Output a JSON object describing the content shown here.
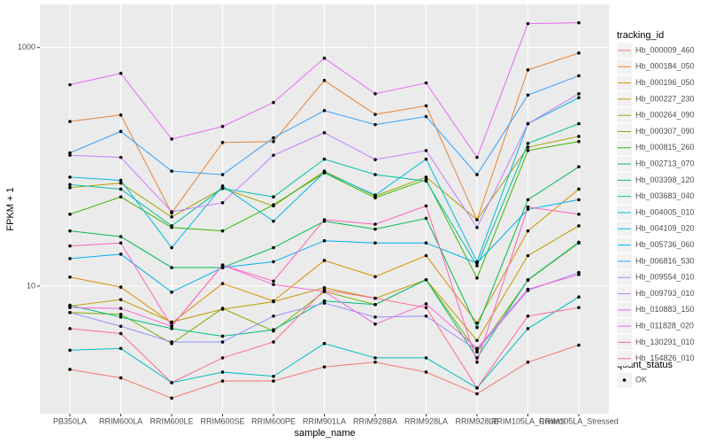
{
  "chart_data": {
    "type": "line",
    "x_label": "sample_name",
    "y_label": "FPKM + 1",
    "categories": [
      "PB350LA",
      "RRIM600LA",
      "RRIM600LE",
      "RRIM600SE",
      "RRIM600PE",
      "RRIM901LA",
      "RRIM928BA",
      "RRIM928LA",
      "RRIM928LE",
      "RRIM105LA_Control",
      "RRIM105LA_Stressed"
    ],
    "log_y": true,
    "ylim": [
      0.85,
      2300
    ],
    "yticks": [
      10,
      1000
    ],
    "grid": true,
    "legend_title": "tracking_id",
    "legend_position": "right",
    "point_legend_title": "quant_status",
    "point_legend_labels": [
      "OK"
    ],
    "point_color": "#000000",
    "series": [
      {
        "name": "Hb_000009_460",
        "color": "#F8766D",
        "values": [
          2.0,
          1.7,
          1.15,
          1.6,
          1.6,
          2.1,
          2.3,
          1.9,
          1.25,
          2.3,
          3.2
        ]
      },
      {
        "name": "Hb_000184_050",
        "color": "#EA8331",
        "values": [
          240,
          272,
          41,
          160,
          163,
          530,
          275,
          325,
          36,
          650,
          900
        ]
      },
      {
        "name": "Hb_000196_050",
        "color": "#D89000",
        "values": [
          11.9,
          9.8,
          4.9,
          10.5,
          7.5,
          16.4,
          12,
          18,
          4.9,
          29,
          65
        ]
      },
      {
        "name": "Hb_000227_230",
        "color": "#C09B00",
        "values": [
          6.8,
          7.7,
          5.0,
          6.4,
          7.4,
          9.7,
          7.9,
          11.3,
          3.5,
          18,
          32
        ]
      },
      {
        "name": "Hb_000264_090",
        "color": "#A3A500",
        "values": [
          67,
          73,
          38,
          66,
          47,
          92,
          57,
          82,
          36,
          146,
          180
        ]
      },
      {
        "name": "Hb_000307_090",
        "color": "#7CAE00",
        "values": [
          6.0,
          5.8,
          3.3,
          6.5,
          4.2,
          9.0,
          7.0,
          11.3,
          2.8,
          11.2,
          23
        ]
      },
      {
        "name": "Hb_000815_260",
        "color": "#39B600",
        "values": [
          40,
          56,
          31,
          29,
          48,
          89,
          55,
          78,
          11.7,
          137,
          163
        ]
      },
      {
        "name": "Hb_002713_070",
        "color": "#00BB4E",
        "values": [
          29,
          26,
          14.3,
          14.3,
          21,
          35,
          30,
          37,
          4.5,
          53,
          100
        ]
      },
      {
        "name": "Hb_003398_120",
        "color": "#00BF7D",
        "values": [
          6.9,
          5.5,
          4.4,
          3.8,
          4.3,
          7.5,
          7.0,
          11.3,
          2.5,
          11.3,
          23.3
        ]
      },
      {
        "name": "Hb_003683_040",
        "color": "#00C1A3",
        "values": [
          71,
          65,
          32,
          66,
          56,
          116,
          86,
          76,
          14.8,
          157,
          230
        ]
      },
      {
        "name": "Hb_004005_010",
        "color": "#00BFC4",
        "values": [
          2.9,
          3.0,
          1.55,
          1.9,
          1.75,
          3.3,
          2.5,
          2.5,
          1.4,
          4.4,
          8.1
        ]
      },
      {
        "name": "Hb_004109_020",
        "color": "#00BAE0",
        "values": [
          82,
          77,
          21,
          69,
          35,
          90,
          58,
          116,
          16,
          230,
          380
        ]
      },
      {
        "name": "Hb_005736_060",
        "color": "#00B0F6",
        "values": [
          17,
          18.5,
          8.9,
          14.3,
          16,
          24,
          23,
          23,
          15.6,
          44,
          53
        ]
      },
      {
        "name": "Hb_006816_530",
        "color": "#35A2FF",
        "values": [
          131,
          198,
          92,
          86,
          175,
          296,
          226,
          264,
          86,
          400,
          580
        ]
      },
      {
        "name": "Hb_009554_010",
        "color": "#9590FF",
        "values": [
          6.0,
          4.6,
          3.4,
          3.4,
          5.6,
          7.2,
          5.5,
          5.6,
          2.9,
          9.2,
          13
        ]
      },
      {
        "name": "Hb_009793_010",
        "color": "#C77CFF",
        "values": [
          125,
          120,
          42,
          50,
          125,
          193,
          115,
          137,
          31,
          230,
          410
        ]
      },
      {
        "name": "Hb_010883_150",
        "color": "#E76BF3",
        "values": [
          488,
          608,
          171,
          218,
          346,
          815,
          410,
          505,
          120,
          1588,
          1615
        ]
      },
      {
        "name": "Hb_011828_020",
        "color": "#FA62DB",
        "values": [
          6.6,
          6.5,
          4.6,
          15,
          10.3,
          9,
          4.8,
          7.1,
          3.0,
          9.4,
          12.5
        ]
      },
      {
        "name": "Hb_130291_010",
        "color": "#FF62BC",
        "values": [
          21.7,
          23,
          4.6,
          15,
          11,
          36,
          33,
          47,
          2.3,
          46,
          40
        ]
      },
      {
        "name": "Hb_154826_010",
        "color": "#FF6C91",
        "values": [
          4.4,
          4.0,
          1.55,
          2.5,
          3.4,
          9.3,
          7.9,
          6.6,
          1.4,
          5.6,
          6.6
        ]
      }
    ]
  }
}
